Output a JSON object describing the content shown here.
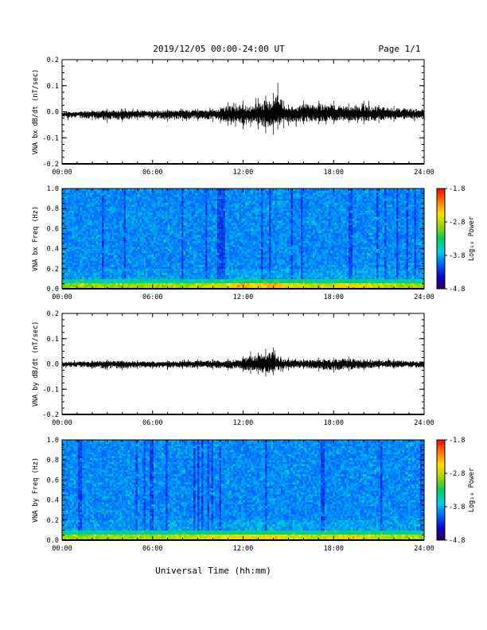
{
  "header": {
    "title": "2019/12/05  00:00-24:00 UT",
    "page_label": "Page 1/1"
  },
  "footer": {
    "xlabel": "Universal Time (hh:mm)"
  },
  "colors": {
    "trace": "#000000",
    "colormap": [
      "#2a0054",
      "#0a00c8",
      "#0066ff",
      "#00cfe8",
      "#00d060",
      "#9ad400",
      "#ffe000",
      "#ff7a00",
      "#ff0000"
    ]
  },
  "chart_data": [
    {
      "type": "line",
      "name": "bx-dbdt",
      "ylabel": "VNA bx dB/dt (nT/sec)",
      "xlim": [
        0,
        24
      ],
      "ylim": [
        -0.2,
        0.2
      ],
      "x_tick_labels": [
        "00:00",
        "06:00",
        "12:00",
        "18:00",
        "24:00"
      ],
      "y_ticks": [
        -0.2,
        -0.1,
        0.0,
        0.1,
        0.2
      ],
      "y_tick_labels": [
        "-0.2",
        "-0.1",
        "0.0",
        "0.1",
        "0.2"
      ],
      "baseline": -0.008,
      "envelope": {
        "t": [
          0,
          2,
          3,
          4,
          5,
          6,
          7,
          8,
          9,
          10,
          10.5,
          11,
          11.5,
          12,
          12.5,
          13,
          13.5,
          14,
          14.3,
          14.7,
          15,
          16,
          17,
          18,
          19,
          20,
          21,
          22,
          24
        ],
        "upper": [
          0.01,
          0.015,
          0.02,
          0.018,
          0.018,
          0.015,
          0.018,
          0.018,
          0.02,
          0.02,
          0.025,
          0.045,
          0.04,
          0.05,
          0.03,
          0.06,
          0.07,
          0.08,
          0.12,
          0.05,
          0.035,
          0.05,
          0.05,
          0.05,
          0.04,
          0.05,
          0.035,
          0.03,
          0.025
        ],
        "lower": [
          -0.02,
          -0.025,
          -0.035,
          -0.03,
          -0.025,
          -0.025,
          -0.03,
          -0.028,
          -0.028,
          -0.03,
          -0.035,
          -0.045,
          -0.05,
          -0.06,
          -0.05,
          -0.06,
          -0.075,
          -0.08,
          -0.06,
          -0.055,
          -0.045,
          -0.04,
          -0.04,
          -0.04,
          -0.035,
          -0.04,
          -0.035,
          -0.03,
          -0.03
        ]
      }
    },
    {
      "type": "heatmap",
      "name": "bx-spectrogram",
      "ylabel": "VNA bx Freq (Hz)",
      "xlim": [
        0,
        24
      ],
      "ylim": [
        0.0,
        1.0
      ],
      "x_tick_labels": [
        "00:00",
        "06:00",
        "12:00",
        "18:00",
        "24:00"
      ],
      "y_ticks": [
        0.0,
        0.2,
        0.4,
        0.6,
        0.8,
        1.0
      ],
      "y_tick_labels": [
        "0.0",
        "0.2",
        "0.4",
        "0.6",
        "0.8",
        "1.0"
      ],
      "colorbar": {
        "label": "Log₁₀ Power",
        "range": [
          -4.8,
          -1.8
        ],
        "ticks": [
          -4.8,
          -3.8,
          -2.8,
          -1.8
        ],
        "tick_labels": [
          "-4.8",
          "-3.8",
          "-2.8",
          "-1.8"
        ]
      },
      "activity": {
        "t": [
          0,
          6,
          9,
          11,
          12,
          13,
          14,
          15,
          17,
          18,
          19,
          20,
          22,
          24
        ],
        "level": [
          0.3,
          0.35,
          0.4,
          0.55,
          0.75,
          0.7,
          0.85,
          0.6,
          0.45,
          0.5,
          0.7,
          0.55,
          0.4,
          0.35
        ]
      }
    },
    {
      "type": "line",
      "name": "by-dbdt",
      "ylabel": "VNA by dB/dt (nT/sec)",
      "xlim": [
        0,
        24
      ],
      "ylim": [
        -0.2,
        0.2
      ],
      "x_tick_labels": [
        "00:00",
        "06:00",
        "12:00",
        "18:00",
        "24:00"
      ],
      "y_ticks": [
        -0.2,
        -0.1,
        0.0,
        0.1,
        0.2
      ],
      "y_tick_labels": [
        "-0.2",
        "-0.1",
        "0.0",
        "0.1",
        "0.2"
      ],
      "baseline": 0.0,
      "envelope": {
        "t": [
          0,
          2,
          3,
          4,
          5,
          6,
          7,
          8,
          9,
          10,
          11,
          12,
          12.5,
          13,
          13.5,
          14,
          14.5,
          15,
          16,
          17,
          18,
          19,
          20,
          21,
          22,
          24
        ],
        "upper": [
          0.012,
          0.015,
          0.018,
          0.015,
          0.015,
          0.012,
          0.015,
          0.015,
          0.018,
          0.018,
          0.02,
          0.03,
          0.05,
          0.045,
          0.06,
          0.065,
          0.03,
          0.025,
          0.02,
          0.025,
          0.025,
          0.03,
          0.02,
          0.02,
          0.02,
          0.015
        ],
        "lower": [
          -0.015,
          -0.02,
          -0.025,
          -0.025,
          -0.02,
          -0.02,
          -0.02,
          -0.02,
          -0.02,
          -0.022,
          -0.025,
          -0.03,
          -0.04,
          -0.04,
          -0.05,
          -0.045,
          -0.03,
          -0.025,
          -0.02,
          -0.03,
          -0.035,
          -0.03,
          -0.025,
          -0.02,
          -0.02,
          -0.02
        ]
      }
    },
    {
      "type": "heatmap",
      "name": "by-spectrogram",
      "ylabel": "VNA by Freq (Hz)",
      "xlim": [
        0,
        24
      ],
      "ylim": [
        0.0,
        1.0
      ],
      "x_tick_labels": [
        "00:00",
        "06:00",
        "12:00",
        "18:00",
        "24:00"
      ],
      "y_ticks": [
        0.0,
        0.2,
        0.4,
        0.6,
        0.8,
        1.0
      ],
      "y_tick_labels": [
        "0.0",
        "0.2",
        "0.4",
        "0.6",
        "0.8",
        "1.0"
      ],
      "colorbar": {
        "label": "Log₁₀ Power",
        "range": [
          -4.8,
          -1.8
        ],
        "ticks": [
          -4.8,
          -3.8,
          -2.8,
          -1.8
        ],
        "tick_labels": [
          "-4.8",
          "-3.8",
          "-2.8",
          "-1.8"
        ]
      },
      "activity": {
        "t": [
          0,
          4,
          8,
          10,
          12,
          13,
          14,
          15,
          17,
          18,
          19,
          20,
          22,
          24
        ],
        "level": [
          0.3,
          0.35,
          0.45,
          0.5,
          0.65,
          0.6,
          0.7,
          0.55,
          0.45,
          0.5,
          0.65,
          0.5,
          0.4,
          0.35
        ]
      }
    }
  ]
}
